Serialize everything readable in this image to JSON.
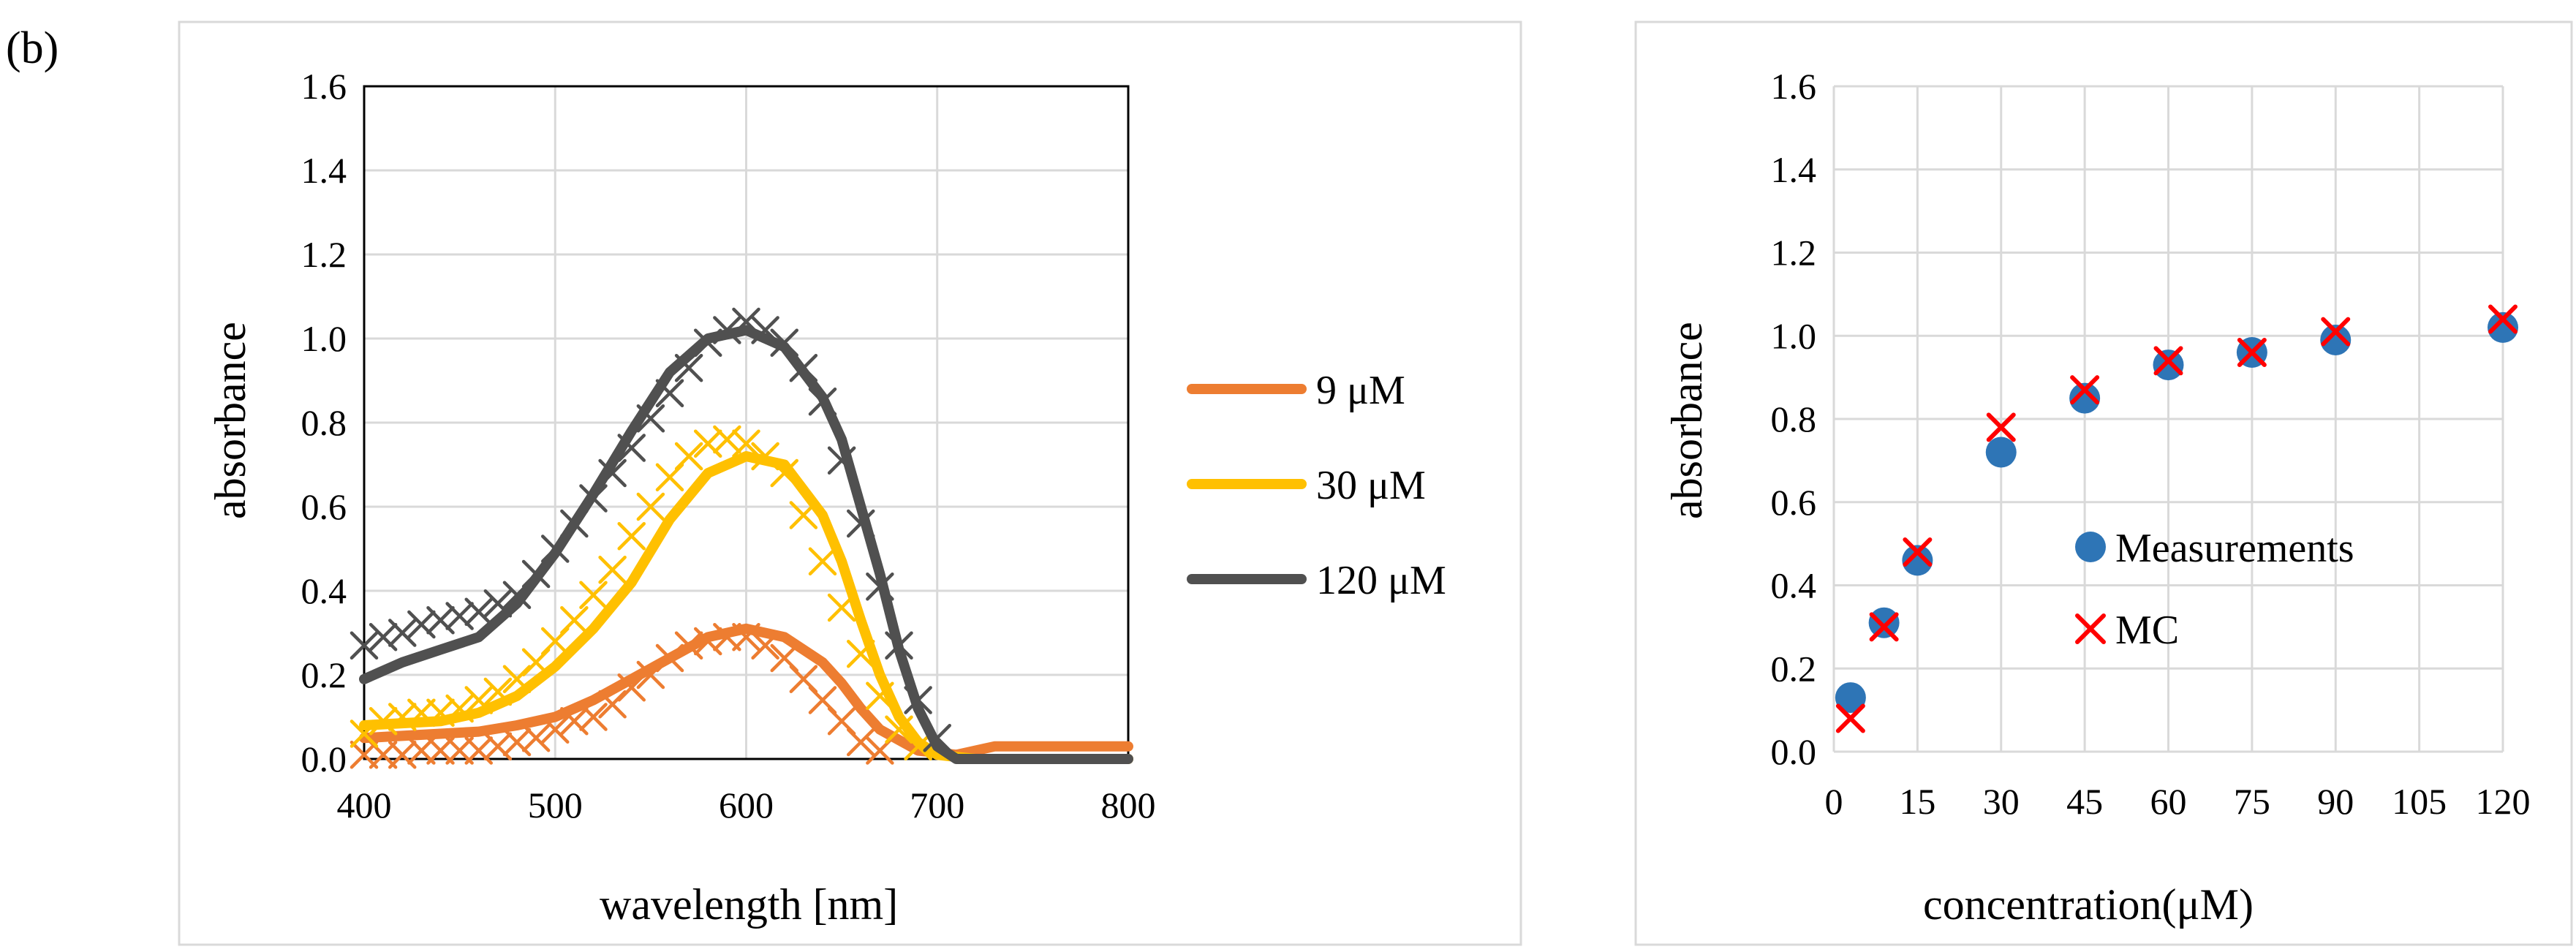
{
  "figure_label": "(b)",
  "chart_data": [
    {
      "type": "line",
      "title": "",
      "xlabel": "wavelength [nm]",
      "ylabel": "absorbance",
      "xlim": [
        400,
        800
      ],
      "ylim": [
        0,
        1.6
      ],
      "x_ticks": [
        "400",
        "500",
        "600",
        "700",
        "800"
      ],
      "y_ticks": [
        "0.0",
        "0.2",
        "0.4",
        "0.6",
        "0.8",
        "1.0",
        "1.2",
        "1.4",
        "1.6"
      ],
      "legend": [
        "9 μM",
        "30 μM",
        "120 μM"
      ],
      "legend_position": "right",
      "colors": [
        "#ed7d31",
        "#ffc000",
        "#505050"
      ],
      "series": [
        {
          "name": "9 μM",
          "line": [
            [
              400,
              0.05
            ],
            [
              420,
              0.055
            ],
            [
              440,
              0.06
            ],
            [
              460,
              0.065
            ],
            [
              480,
              0.08
            ],
            [
              500,
              0.1
            ],
            [
              520,
              0.14
            ],
            [
              540,
              0.19
            ],
            [
              560,
              0.24
            ],
            [
              580,
              0.29
            ],
            [
              600,
              0.31
            ],
            [
              620,
              0.29
            ],
            [
              640,
              0.23
            ],
            [
              650,
              0.18
            ],
            [
              660,
              0.12
            ],
            [
              670,
              0.07
            ],
            [
              690,
              0.02
            ],
            [
              710,
              0.01
            ],
            [
              730,
              0.03
            ],
            [
              760,
              0.03
            ],
            [
              800,
              0.03
            ]
          ],
          "markers": [
            [
              400,
              0.01
            ],
            [
              410,
              0.01
            ],
            [
              420,
              0.01
            ],
            [
              430,
              0.02
            ],
            [
              440,
              0.02
            ],
            [
              450,
              0.02
            ],
            [
              460,
              0.02
            ],
            [
              470,
              0.03
            ],
            [
              480,
              0.04
            ],
            [
              490,
              0.05
            ],
            [
              500,
              0.07
            ],
            [
              510,
              0.09
            ],
            [
              520,
              0.1
            ],
            [
              530,
              0.13
            ],
            [
              540,
              0.17
            ],
            [
              550,
              0.2
            ],
            [
              560,
              0.24
            ],
            [
              570,
              0.27
            ],
            [
              580,
              0.28
            ],
            [
              590,
              0.29
            ],
            [
              600,
              0.29
            ],
            [
              610,
              0.27
            ],
            [
              620,
              0.24
            ],
            [
              630,
              0.19
            ],
            [
              640,
              0.14
            ],
            [
              650,
              0.09
            ],
            [
              660,
              0.04
            ],
            [
              670,
              0.02
            ]
          ]
        },
        {
          "name": "30 μM",
          "line": [
            [
              400,
              0.08
            ],
            [
              420,
              0.085
            ],
            [
              440,
              0.09
            ],
            [
              460,
              0.11
            ],
            [
              480,
              0.15
            ],
            [
              500,
              0.22
            ],
            [
              520,
              0.31
            ],
            [
              540,
              0.42
            ],
            [
              560,
              0.57
            ],
            [
              580,
              0.68
            ],
            [
              600,
              0.72
            ],
            [
              620,
              0.7
            ],
            [
              640,
              0.58
            ],
            [
              650,
              0.47
            ],
            [
              660,
              0.33
            ],
            [
              670,
              0.2
            ],
            [
              680,
              0.1
            ],
            [
              690,
              0.04
            ],
            [
              700,
              0.01
            ],
            [
              720,
              0.0
            ],
            [
              800,
              0.0
            ]
          ],
          "markers": [
            [
              400,
              0.06
            ],
            [
              410,
              0.09
            ],
            [
              420,
              0.1
            ],
            [
              430,
              0.11
            ],
            [
              440,
              0.11
            ],
            [
              450,
              0.12
            ],
            [
              460,
              0.14
            ],
            [
              470,
              0.16
            ],
            [
              480,
              0.19
            ],
            [
              490,
              0.23
            ],
            [
              500,
              0.28
            ],
            [
              510,
              0.33
            ],
            [
              520,
              0.39
            ],
            [
              530,
              0.45
            ],
            [
              540,
              0.53
            ],
            [
              550,
              0.6
            ],
            [
              560,
              0.67
            ],
            [
              570,
              0.72
            ],
            [
              580,
              0.75
            ],
            [
              590,
              0.76
            ],
            [
              600,
              0.75
            ],
            [
              610,
              0.72
            ],
            [
              620,
              0.68
            ],
            [
              630,
              0.58
            ],
            [
              640,
              0.47
            ],
            [
              650,
              0.36
            ],
            [
              660,
              0.25
            ],
            [
              670,
              0.15
            ],
            [
              680,
              0.07
            ],
            [
              690,
              0.03
            ]
          ]
        },
        {
          "name": "120 μM",
          "line": [
            [
              400,
              0.19
            ],
            [
              420,
              0.23
            ],
            [
              440,
              0.26
            ],
            [
              460,
              0.29
            ],
            [
              480,
              0.37
            ],
            [
              500,
              0.49
            ],
            [
              520,
              0.63
            ],
            [
              540,
              0.78
            ],
            [
              560,
              0.92
            ],
            [
              580,
              1.0
            ],
            [
              600,
              1.02
            ],
            [
              620,
              0.98
            ],
            [
              640,
              0.86
            ],
            [
              650,
              0.76
            ],
            [
              660,
              0.6
            ],
            [
              670,
              0.44
            ],
            [
              680,
              0.26
            ],
            [
              690,
              0.12
            ],
            [
              700,
              0.03
            ],
            [
              710,
              0.0
            ],
            [
              800,
              0.0
            ]
          ],
          "markers": [
            [
              400,
              0.27
            ],
            [
              410,
              0.29
            ],
            [
              420,
              0.3
            ],
            [
              430,
              0.32
            ],
            [
              440,
              0.33
            ],
            [
              450,
              0.34
            ],
            [
              460,
              0.35
            ],
            [
              470,
              0.37
            ],
            [
              480,
              0.39
            ],
            [
              490,
              0.44
            ],
            [
              500,
              0.5
            ],
            [
              510,
              0.56
            ],
            [
              520,
              0.62
            ],
            [
              530,
              0.68
            ],
            [
              540,
              0.74
            ],
            [
              550,
              0.81
            ],
            [
              560,
              0.87
            ],
            [
              570,
              0.93
            ],
            [
              580,
              0.99
            ],
            [
              590,
              1.02
            ],
            [
              600,
              1.04
            ],
            [
              610,
              1.02
            ],
            [
              620,
              0.99
            ],
            [
              630,
              0.93
            ],
            [
              640,
              0.85
            ],
            [
              650,
              0.71
            ],
            [
              660,
              0.56
            ],
            [
              670,
              0.41
            ],
            [
              680,
              0.27
            ],
            [
              690,
              0.14
            ],
            [
              700,
              0.05
            ]
          ]
        }
      ]
    },
    {
      "type": "scatter",
      "title": "",
      "xlabel": "concentration(μM)",
      "ylabel": "absorbance",
      "xlim": [
        0,
        120
      ],
      "ylim": [
        0,
        1.6
      ],
      "x_ticks": [
        "0",
        "15",
        "30",
        "45",
        "60",
        "75",
        "90",
        "105",
        "120"
      ],
      "y_ticks": [
        "0.0",
        "0.2",
        "0.4",
        "0.6",
        "0.8",
        "1.0",
        "1.2",
        "1.4",
        "1.6"
      ],
      "legend": [
        "Measurements",
        "MC"
      ],
      "legend_position": "center-right",
      "colors": [
        "#2e75b6",
        "#ff0000"
      ],
      "series": [
        {
          "name": "Measurements",
          "marker": "circle",
          "points": [
            [
              3,
              0.13
            ],
            [
              9,
              0.31
            ],
            [
              15,
              0.46
            ],
            [
              30,
              0.72
            ],
            [
              45,
              0.85
            ],
            [
              60,
              0.93
            ],
            [
              75,
              0.96
            ],
            [
              90,
              0.99
            ],
            [
              120,
              1.02
            ]
          ]
        },
        {
          "name": "MC",
          "marker": "x",
          "points": [
            [
              3,
              0.08
            ],
            [
              9,
              0.3
            ],
            [
              15,
              0.48
            ],
            [
              30,
              0.78
            ],
            [
              45,
              0.87
            ],
            [
              60,
              0.94
            ],
            [
              75,
              0.96
            ],
            [
              90,
              1.01
            ],
            [
              120,
              1.04
            ]
          ]
        }
      ]
    }
  ]
}
